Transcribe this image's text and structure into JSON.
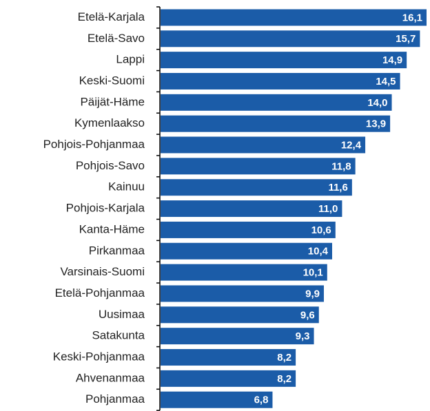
{
  "chart_data": {
    "type": "bar",
    "orientation": "horizontal",
    "categories": [
      "Etelä-Karjala",
      "Etelä-Savo",
      "Lappi",
      "Keski-Suomi",
      "Päijät-Häme",
      "Kymenlaakso",
      "Pohjois-Pohjanmaa",
      "Pohjois-Savo",
      "Kainuu",
      "Pohjois-Karjala",
      "Kanta-Häme",
      "Pirkanmaa",
      "Varsinais-Suomi",
      "Etelä-Pohjanmaa",
      "Uusimaa",
      "Satakunta",
      "Keski-Pohjanmaa",
      "Ahvenanmaa",
      "Pohjanmaa"
    ],
    "values": [
      16.1,
      15.7,
      14.9,
      14.5,
      14.0,
      13.9,
      12.4,
      11.8,
      11.6,
      11.0,
      10.6,
      10.4,
      10.1,
      9.9,
      9.6,
      9.3,
      8.2,
      8.2,
      6.8
    ],
    "value_labels": [
      "16,1",
      "15,7",
      "14,9",
      "14,5",
      "14,0",
      "13,9",
      "12,4",
      "11,8",
      "11,6",
      "11,0",
      "10,6",
      "10,4",
      "10,1",
      "9,9",
      "9,6",
      "9,3",
      "8,2",
      "8,2",
      "6,8"
    ],
    "color": "#1b5ca8"
  }
}
